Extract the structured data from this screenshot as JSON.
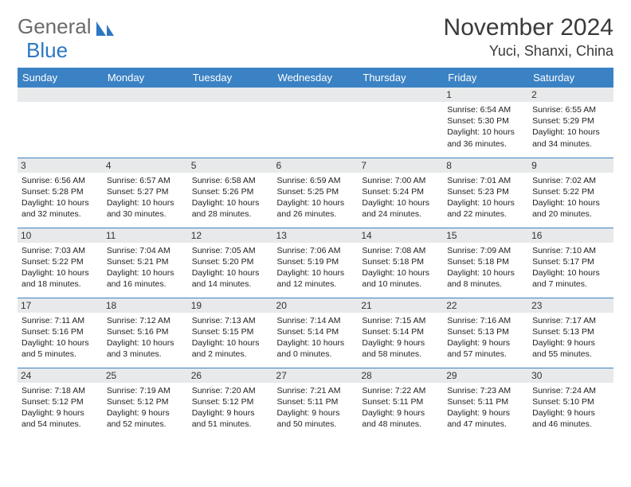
{
  "brand": {
    "part1": "General",
    "part2": "Blue"
  },
  "title": "November 2024",
  "location": "Yuci, Shanxi, China",
  "colors": {
    "header_bg": "#3b82c4",
    "header_text": "#ffffff",
    "daynum_bg": "#e8e9ea",
    "rule": "#3b82c4",
    "logo_gray": "#6b6b6b",
    "logo_blue": "#2d77c2"
  },
  "weekdays": [
    "Sunday",
    "Monday",
    "Tuesday",
    "Wednesday",
    "Thursday",
    "Friday",
    "Saturday"
  ],
  "first_weekday_index": 5,
  "days": [
    {
      "n": 1,
      "sunrise": "6:54 AM",
      "sunset": "5:30 PM",
      "daylight": "10 hours and 36 minutes."
    },
    {
      "n": 2,
      "sunrise": "6:55 AM",
      "sunset": "5:29 PM",
      "daylight": "10 hours and 34 minutes."
    },
    {
      "n": 3,
      "sunrise": "6:56 AM",
      "sunset": "5:28 PM",
      "daylight": "10 hours and 32 minutes."
    },
    {
      "n": 4,
      "sunrise": "6:57 AM",
      "sunset": "5:27 PM",
      "daylight": "10 hours and 30 minutes."
    },
    {
      "n": 5,
      "sunrise": "6:58 AM",
      "sunset": "5:26 PM",
      "daylight": "10 hours and 28 minutes."
    },
    {
      "n": 6,
      "sunrise": "6:59 AM",
      "sunset": "5:25 PM",
      "daylight": "10 hours and 26 minutes."
    },
    {
      "n": 7,
      "sunrise": "7:00 AM",
      "sunset": "5:24 PM",
      "daylight": "10 hours and 24 minutes."
    },
    {
      "n": 8,
      "sunrise": "7:01 AM",
      "sunset": "5:23 PM",
      "daylight": "10 hours and 22 minutes."
    },
    {
      "n": 9,
      "sunrise": "7:02 AM",
      "sunset": "5:22 PM",
      "daylight": "10 hours and 20 minutes."
    },
    {
      "n": 10,
      "sunrise": "7:03 AM",
      "sunset": "5:22 PM",
      "daylight": "10 hours and 18 minutes."
    },
    {
      "n": 11,
      "sunrise": "7:04 AM",
      "sunset": "5:21 PM",
      "daylight": "10 hours and 16 minutes."
    },
    {
      "n": 12,
      "sunrise": "7:05 AM",
      "sunset": "5:20 PM",
      "daylight": "10 hours and 14 minutes."
    },
    {
      "n": 13,
      "sunrise": "7:06 AM",
      "sunset": "5:19 PM",
      "daylight": "10 hours and 12 minutes."
    },
    {
      "n": 14,
      "sunrise": "7:08 AM",
      "sunset": "5:18 PM",
      "daylight": "10 hours and 10 minutes."
    },
    {
      "n": 15,
      "sunrise": "7:09 AM",
      "sunset": "5:18 PM",
      "daylight": "10 hours and 8 minutes."
    },
    {
      "n": 16,
      "sunrise": "7:10 AM",
      "sunset": "5:17 PM",
      "daylight": "10 hours and 7 minutes."
    },
    {
      "n": 17,
      "sunrise": "7:11 AM",
      "sunset": "5:16 PM",
      "daylight": "10 hours and 5 minutes."
    },
    {
      "n": 18,
      "sunrise": "7:12 AM",
      "sunset": "5:16 PM",
      "daylight": "10 hours and 3 minutes."
    },
    {
      "n": 19,
      "sunrise": "7:13 AM",
      "sunset": "5:15 PM",
      "daylight": "10 hours and 2 minutes."
    },
    {
      "n": 20,
      "sunrise": "7:14 AM",
      "sunset": "5:14 PM",
      "daylight": "10 hours and 0 minutes."
    },
    {
      "n": 21,
      "sunrise": "7:15 AM",
      "sunset": "5:14 PM",
      "daylight": "9 hours and 58 minutes."
    },
    {
      "n": 22,
      "sunrise": "7:16 AM",
      "sunset": "5:13 PM",
      "daylight": "9 hours and 57 minutes."
    },
    {
      "n": 23,
      "sunrise": "7:17 AM",
      "sunset": "5:13 PM",
      "daylight": "9 hours and 55 minutes."
    },
    {
      "n": 24,
      "sunrise": "7:18 AM",
      "sunset": "5:12 PM",
      "daylight": "9 hours and 54 minutes."
    },
    {
      "n": 25,
      "sunrise": "7:19 AM",
      "sunset": "5:12 PM",
      "daylight": "9 hours and 52 minutes."
    },
    {
      "n": 26,
      "sunrise": "7:20 AM",
      "sunset": "5:12 PM",
      "daylight": "9 hours and 51 minutes."
    },
    {
      "n": 27,
      "sunrise": "7:21 AM",
      "sunset": "5:11 PM",
      "daylight": "9 hours and 50 minutes."
    },
    {
      "n": 28,
      "sunrise": "7:22 AM",
      "sunset": "5:11 PM",
      "daylight": "9 hours and 48 minutes."
    },
    {
      "n": 29,
      "sunrise": "7:23 AM",
      "sunset": "5:11 PM",
      "daylight": "9 hours and 47 minutes."
    },
    {
      "n": 30,
      "sunrise": "7:24 AM",
      "sunset": "5:10 PM",
      "daylight": "9 hours and 46 minutes."
    }
  ],
  "labels": {
    "sunrise": "Sunrise:",
    "sunset": "Sunset:",
    "daylight": "Daylight:"
  }
}
